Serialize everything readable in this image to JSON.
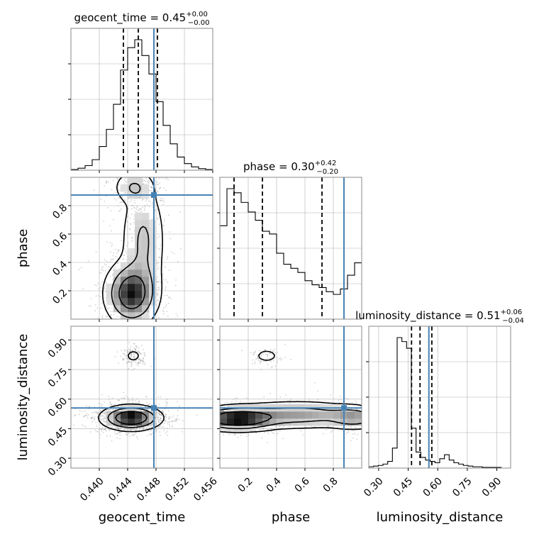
{
  "colors": {
    "truth": "#4682b4",
    "contour": "#000000",
    "grid": "#b0b0b0",
    "scatter": "#9a9a9a"
  },
  "chart_data": {
    "type": "corner",
    "parameters": [
      "geocent_time",
      "phase",
      "luminosity_distance"
    ],
    "truths": {
      "geocent_time": 0.4477,
      "phase": 0.875,
      "luminosity_distance": 0.555
    },
    "axes": {
      "geocent_time": {
        "range": [
          0.436,
          0.456
        ],
        "ticks": [
          "0.440",
          "0.444",
          "0.448",
          "0.452",
          "0.456"
        ],
        "tick_values": [
          0.44,
          0.444,
          0.448,
          0.452,
          0.456
        ]
      },
      "phase": {
        "range": [
          0.0,
          1.0
        ],
        "ticks": [
          "0.2",
          "0.4",
          "0.6",
          "0.8"
        ],
        "tick_values": [
          0.2,
          0.4,
          0.6,
          0.8
        ]
      },
      "luminosity_distance": {
        "range": [
          0.25,
          0.97
        ],
        "ticks": [
          "0.30",
          "0.45",
          "0.60",
          "0.75",
          "0.90"
        ],
        "tick_values": [
          0.3,
          0.45,
          0.6,
          0.75,
          0.9
        ]
      }
    },
    "titles": [
      {
        "param": "geocent_time",
        "name": "geocent_time",
        "median": "0.45",
        "plus": "+0.00",
        "minus": "−0.00"
      },
      {
        "param": "phase",
        "name": "phase",
        "median": "0.30",
        "plus": "+0.42",
        "minus": "−0.20"
      },
      {
        "param": "luminosity_distance",
        "name": "luminosity_distance",
        "median": "0.51",
        "plus": "+0.06",
        "minus": "−0.04"
      }
    ],
    "histograms": {
      "geocent_time": {
        "bin_edges_start": 0.436,
        "bin_width": 0.001,
        "counts": [
          0.005,
          0.015,
          0.035,
          0.08,
          0.18,
          0.31,
          0.5,
          0.76,
          0.93,
          0.99,
          0.87,
          0.73,
          0.52,
          0.34,
          0.2,
          0.1,
          0.05,
          0.025,
          0.012,
          0.005
        ],
        "quantiles": [
          0.4434,
          0.4455,
          0.4482
        ]
      },
      "phase": {
        "bin_edges_start": 0.0,
        "bin_width": 0.05,
        "counts": [
          0.68,
          0.95,
          0.92,
          0.85,
          0.78,
          0.72,
          0.64,
          0.62,
          0.48,
          0.4,
          0.37,
          0.34,
          0.28,
          0.25,
          0.23,
          0.2,
          0.18,
          0.22,
          0.32,
          0.41
        ],
        "quantiles": [
          0.1,
          0.3,
          0.72
        ]
      },
      "luminosity_distance": {
        "bin_edges_start": 0.25,
        "bin_width": 0.024,
        "counts": [
          0.01,
          0.015,
          0.02,
          0.03,
          0.05,
          0.15,
          0.98,
          0.95,
          0.9,
          0.3,
          0.12,
          0.08,
          0.06,
          0.05,
          0.04,
          0.07,
          0.1,
          0.06,
          0.04,
          0.03,
          0.02,
          0.015,
          0.01,
          0.01,
          0.005,
          0.005,
          0.005,
          0.005,
          0.0,
          0.0
        ],
        "quantiles": [
          0.467,
          0.51,
          0.57
        ]
      }
    },
    "density_peaks": {
      "phase_vs_geocent_time": [
        {
          "x": 0.4445,
          "y": 0.18,
          "sx": 0.0018,
          "sy": 0.11,
          "w": 1.0
        },
        {
          "x": 0.4462,
          "y": 0.55,
          "sx": 0.0016,
          "sy": 0.22,
          "w": 0.35
        },
        {
          "x": 0.4448,
          "y": 0.93,
          "sx": 0.0014,
          "sy": 0.06,
          "w": 0.3
        }
      ],
      "luminosity_distance_vs_geocent_time": [
        {
          "x": 0.4445,
          "y": 0.505,
          "sx": 0.002,
          "sy": 0.03,
          "w": 1.0
        },
        {
          "x": 0.4448,
          "y": 0.82,
          "sx": 0.0007,
          "sy": 0.02,
          "w": 0.12
        }
      ],
      "luminosity_distance_vs_phase": [
        {
          "x": 0.12,
          "y": 0.5,
          "sx": 0.15,
          "sy": 0.03,
          "w": 1.0
        },
        {
          "x": 0.55,
          "y": 0.52,
          "sx": 0.25,
          "sy": 0.035,
          "w": 0.45
        },
        {
          "x": 0.95,
          "y": 0.505,
          "sx": 0.1,
          "sy": 0.03,
          "w": 0.4
        },
        {
          "x": 0.33,
          "y": 0.82,
          "sx": 0.05,
          "sy": 0.02,
          "w": 0.14
        }
      ]
    },
    "grid": true
  }
}
